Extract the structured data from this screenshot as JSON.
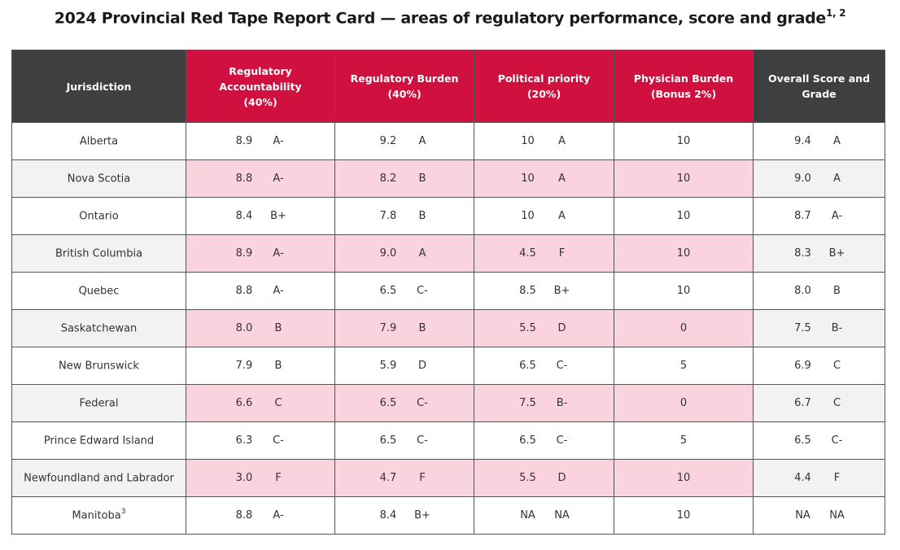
{
  "title": "2024 Provincial Red Tape Report Card — areas of regulatory performance, score and grade",
  "title_sup": "1, 2",
  "colors": {
    "header_red": "#d0103f",
    "header_dark": "#3f3f3f",
    "row_pink": "#fbd3de",
    "row_gray": "#f2f2f2"
  },
  "headers": {
    "jurisdiction": "Jurisdiction",
    "accountability": "Regulatory Accountability",
    "accountability_weight": "(40%)",
    "burden": "Regulatory Burden",
    "burden_weight": "(40%)",
    "priority": "Political priority",
    "priority_weight": "(20%)",
    "physician": "Physician Burden",
    "physician_weight": "(Bonus 2%)",
    "overall": "Overall Score and",
    "overall_line2": "Grade"
  },
  "rows": [
    {
      "name": "Alberta",
      "sup": "",
      "acc": "8.9",
      "acc_g": "A-",
      "bur": "9.2",
      "bur_g": "A",
      "pri": "10",
      "pri_g": "A",
      "phy": "10",
      "ovr": "9.4",
      "ovr_g": "A"
    },
    {
      "name": "Nova Scotia",
      "sup": "",
      "acc": "8.8",
      "acc_g": "A-",
      "bur": "8.2",
      "bur_g": "B",
      "pri": "10",
      "pri_g": "A",
      "phy": "10",
      "ovr": "9.0",
      "ovr_g": "A"
    },
    {
      "name": "Ontario",
      "sup": "",
      "acc": "8.4",
      "acc_g": "B+",
      "bur": "7.8",
      "bur_g": "B",
      "pri": "10",
      "pri_g": "A",
      "phy": "10",
      "ovr": "8.7",
      "ovr_g": "A-"
    },
    {
      "name": "British Columbia",
      "sup": "",
      "acc": "8.9",
      "acc_g": "A-",
      "bur": "9.0",
      "bur_g": "A",
      "pri": "4.5",
      "pri_g": "F",
      "phy": "10",
      "ovr": "8.3",
      "ovr_g": "B+"
    },
    {
      "name": "Quebec",
      "sup": "",
      "acc": "8.8",
      "acc_g": "A-",
      "bur": "6.5",
      "bur_g": "C-",
      "pri": "8.5",
      "pri_g": "B+",
      "phy": "10",
      "ovr": "8.0",
      "ovr_g": "B"
    },
    {
      "name": "Saskatchewan",
      "sup": "",
      "acc": "8.0",
      "acc_g": "B",
      "bur": "7.9",
      "bur_g": "B",
      "pri": "5.5",
      "pri_g": "D",
      "phy": "0",
      "ovr": "7.5",
      "ovr_g": "B-"
    },
    {
      "name": "New Brunswick",
      "sup": "",
      "acc": "7.9",
      "acc_g": "B",
      "bur": "5.9",
      "bur_g": "D",
      "pri": "6.5",
      "pri_g": "C-",
      "phy": "5",
      "ovr": "6.9",
      "ovr_g": "C"
    },
    {
      "name": "Federal",
      "sup": "",
      "acc": "6.6",
      "acc_g": "C",
      "bur": "6.5",
      "bur_g": "C-",
      "pri": "7.5",
      "pri_g": "B-",
      "phy": "0",
      "ovr": "6.7",
      "ovr_g": "C"
    },
    {
      "name": "Prince Edward Island",
      "sup": "",
      "acc": "6.3",
      "acc_g": "C-",
      "bur": "6.5",
      "bur_g": "C-",
      "pri": "6.5",
      "pri_g": "C-",
      "phy": "5",
      "ovr": "6.5",
      "ovr_g": "C-"
    },
    {
      "name": "Newfoundland and Labrador",
      "sup": "",
      "acc": "3.0",
      "acc_g": "F",
      "bur": "4.7",
      "bur_g": "F",
      "pri": "5.5",
      "pri_g": "D",
      "phy": "10",
      "ovr": "4.4",
      "ovr_g": "F"
    },
    {
      "name": "Manitoba",
      "sup": "3",
      "acc": "8.8",
      "acc_g": "A-",
      "bur": "8.4",
      "bur_g": "B+",
      "pri": "NA",
      "pri_g": "NA",
      "phy": "10",
      "ovr": "NA",
      "ovr_g": "NA"
    }
  ]
}
